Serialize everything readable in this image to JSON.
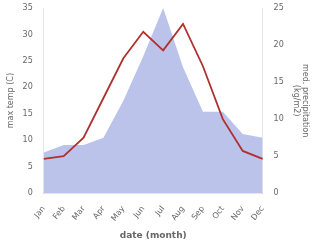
{
  "chart_data": {
    "type": "line",
    "xlabel": "date (month)",
    "ylabel": "max temp (C)",
    "y2label": "med. precipitation\n(kg/m2)",
    "categories": [
      "Jan",
      "Feb",
      "Mar",
      "Apr",
      "May",
      "Jun",
      "Jul",
      "Aug",
      "Sep",
      "Oct",
      "Nov",
      "Dec"
    ],
    "series": [
      {
        "type": "area",
        "axis": "y2",
        "color": "#b0b8e8",
        "values": [
          5.5,
          6.5,
          6.5,
          7.5,
          12.5,
          18.5,
          25.0,
          17.0,
          11.0,
          11.0,
          8.0,
          7.5
        ]
      },
      {
        "type": "line",
        "color": "#b03030",
        "values": [
          6.5,
          7.0,
          10.5,
          18.0,
          25.5,
          30.5,
          27.0,
          32.0,
          24.0,
          14.0,
          8.0,
          6.5
        ]
      }
    ],
    "ylim": [
      0,
      35
    ],
    "yticks": [
      0,
      5,
      10,
      15,
      20,
      25,
      30,
      35
    ],
    "y2lim": [
      0,
      25
    ],
    "y2ticks": [
      0,
      5,
      10,
      15,
      20,
      25
    ],
    "grid": false
  }
}
